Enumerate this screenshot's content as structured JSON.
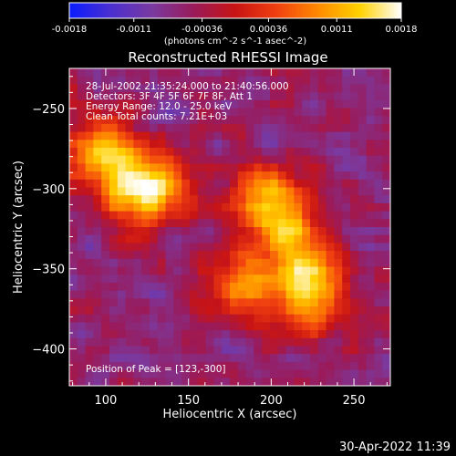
{
  "chart_data": {
    "type": "heatmap",
    "title": "Reconstructed RHESSI Image",
    "xlabel": "Heliocentric X (arcsec)",
    "ylabel": "Heliocentric Y (arcsec)",
    "xlim": [
      78,
      272
    ],
    "ylim": [
      -423,
      -225
    ],
    "x_ticks": [
      100,
      150,
      200,
      250
    ],
    "y_ticks": [
      -250,
      -300,
      -350,
      -400
    ],
    "colorbar": {
      "range": [
        -0.0018,
        0.0018
      ],
      "ticks": [
        "-0.0018",
        "-0.0011",
        "-0.00036",
        "0.00036",
        "0.0011",
        "0.0018"
      ],
      "units": "(photons cm^-2 s^-1 asec^-2)",
      "colors": [
        "#0a1cff",
        "#4b2fd0",
        "#7a3aa0",
        "#9a1a5a",
        "#c81414",
        "#f04010",
        "#ff8a00",
        "#ffd200",
        "#ffffff"
      ]
    },
    "annotations": [
      "28-Jul-2002 21:35:24.000 to 21:40:56.000",
      "Detectors: 3F 4F 5F 6F 7F 8F, Att 1",
      "Energy Range: 12.0 - 25.0 keV",
      "Clean     Total counts: 7.21E+03"
    ],
    "peak_label": "Position of Peak = [123,-300]",
    "sources": [
      {
        "x": 123,
        "y": -300,
        "value": 0.0018
      },
      {
        "x": 200,
        "y": -310,
        "value": 0.0015
      },
      {
        "x": 95,
        "y": -278,
        "value": 0.0009
      },
      {
        "x": 218,
        "y": -345,
        "value": 0.0009
      },
      {
        "x": 222,
        "y": -372,
        "value": 0.0008
      },
      {
        "x": 178,
        "y": -360,
        "value": 0.0006
      }
    ],
    "background": -0.0006
  },
  "timestamp": "30-Apr-2022 11:39"
}
